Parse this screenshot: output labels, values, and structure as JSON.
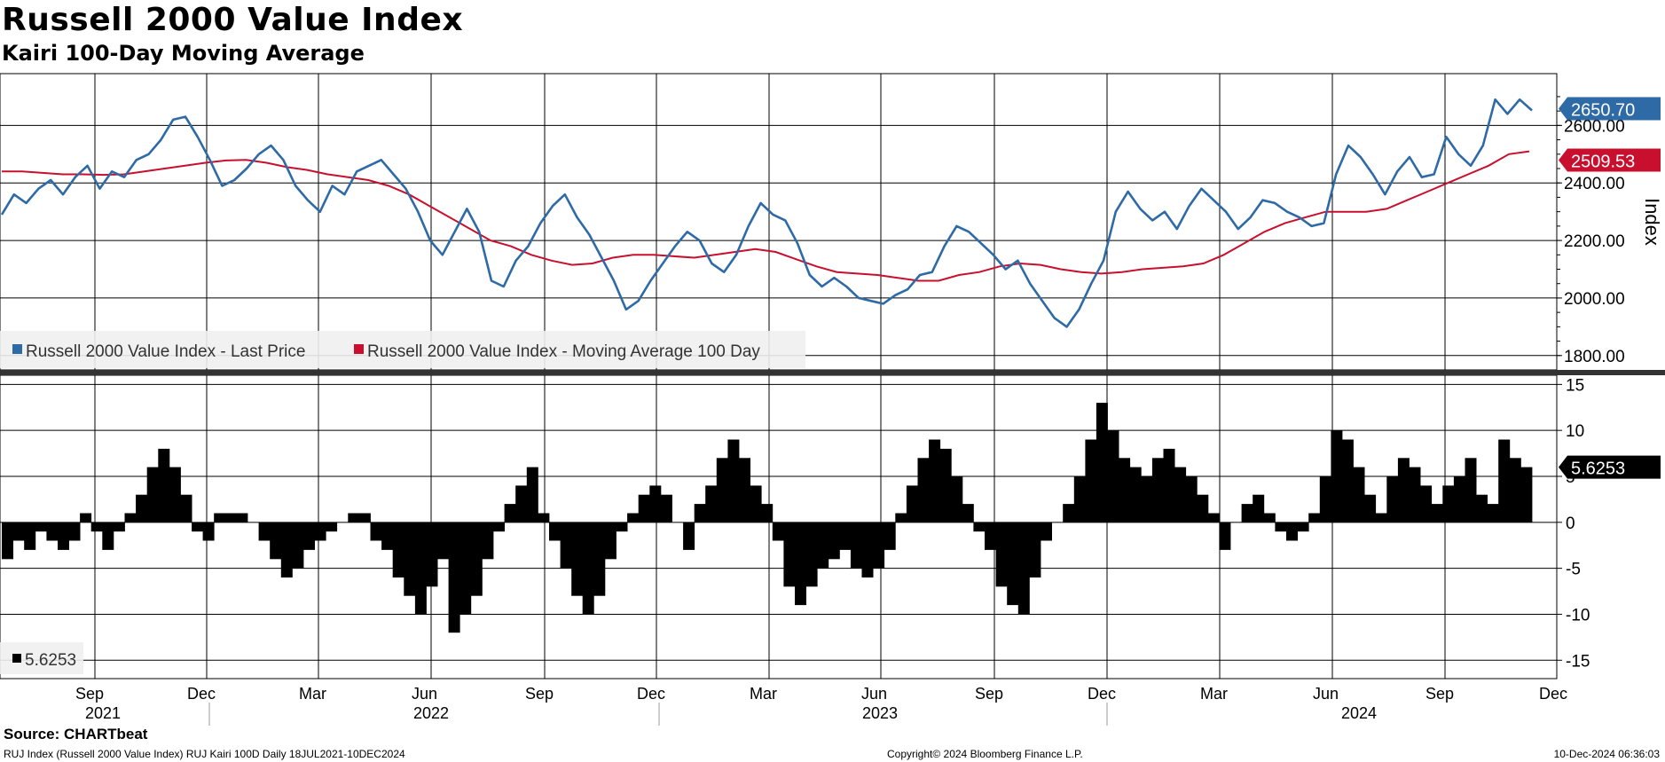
{
  "title": "Russell 2000 Value Index",
  "subtitle": "Kairi 100-Day Moving Average",
  "colors": {
    "price": "#2e6aa6",
    "ma": "#c8102e",
    "kairi": "#000000",
    "grid": "#000000"
  },
  "chart_data": {
    "type": "line",
    "period": "18JUL2021-10DEC2024",
    "months": [
      "Sep",
      "Dec",
      "Mar",
      "Jun",
      "Sep",
      "Dec",
      "Mar",
      "Jun",
      "Sep",
      "Dec",
      "Mar",
      "Jun",
      "Sep",
      "Dec"
    ],
    "years": [
      "2021",
      "2022",
      "2023",
      "2024"
    ],
    "upper": {
      "ylabel": "Index",
      "ylim": [
        1750,
        2780
      ],
      "ticks": [
        "1800.00",
        "2000.00",
        "2200.00",
        "2400.00",
        "2600.00"
      ],
      "series": [
        {
          "name": "Russell 2000 Value Index - Last Price",
          "last_label": "2650.70",
          "values": [
            2290,
            2360,
            2330,
            2380,
            2410,
            2360,
            2420,
            2460,
            2380,
            2440,
            2420,
            2480,
            2500,
            2550,
            2620,
            2630,
            2560,
            2480,
            2390,
            2410,
            2450,
            2500,
            2530,
            2480,
            2390,
            2340,
            2300,
            2390,
            2360,
            2440,
            2460,
            2480,
            2430,
            2380,
            2300,
            2200,
            2150,
            2230,
            2310,
            2230,
            2060,
            2040,
            2130,
            2180,
            2260,
            2320,
            2360,
            2280,
            2220,
            2140,
            2060,
            1960,
            1990,
            2060,
            2120,
            2180,
            2230,
            2200,
            2120,
            2090,
            2150,
            2250,
            2330,
            2290,
            2270,
            2190,
            2080,
            2040,
            2070,
            2040,
            2000,
            1990,
            1980,
            2010,
            2030,
            2080,
            2090,
            2180,
            2250,
            2230,
            2190,
            2150,
            2100,
            2130,
            2050,
            1990,
            1930,
            1900,
            1960,
            2050,
            2130,
            2300,
            2370,
            2310,
            2270,
            2300,
            2240,
            2320,
            2380,
            2340,
            2300,
            2240,
            2280,
            2340,
            2330,
            2300,
            2280,
            2250,
            2260,
            2430,
            2530,
            2490,
            2430,
            2360,
            2440,
            2490,
            2420,
            2430,
            2560,
            2500,
            2460,
            2530,
            2690,
            2640,
            2690,
            2652
          ]
        },
        {
          "name": "Russell 2000 Value Index - Moving Average 100 Day",
          "last_label": "2509.53",
          "values": [
            2440,
            2440,
            2435,
            2430,
            2430,
            2428,
            2430,
            2440,
            2450,
            2460,
            2470,
            2478,
            2480,
            2470,
            2455,
            2445,
            2430,
            2420,
            2410,
            2390,
            2360,
            2320,
            2280,
            2240,
            2200,
            2180,
            2150,
            2130,
            2115,
            2120,
            2140,
            2150,
            2150,
            2145,
            2140,
            2150,
            2160,
            2170,
            2160,
            2135,
            2110,
            2090,
            2085,
            2080,
            2070,
            2060,
            2060,
            2080,
            2090,
            2110,
            2120,
            2115,
            2100,
            2090,
            2085,
            2090,
            2100,
            2105,
            2110,
            2120,
            2150,
            2190,
            2230,
            2260,
            2280,
            2300,
            2300,
            2300,
            2310,
            2340,
            2370,
            2400,
            2430,
            2460,
            2500,
            2510
          ]
        }
      ]
    },
    "lower": {
      "name": "Kairi",
      "ylim": [
        -17,
        16
      ],
      "ticks": [
        "-15",
        "-10",
        "-5",
        "0",
        "5",
        "10",
        "15"
      ],
      "legend": "5.6253",
      "last_label": "5.6253",
      "values": [
        -4,
        -2,
        -3,
        -1,
        -2,
        -3,
        -2,
        1,
        -1,
        -3,
        -1,
        1,
        3,
        6,
        8,
        6,
        3,
        -1,
        -2,
        1,
        1,
        1,
        0,
        -2,
        -4,
        -6,
        -5,
        -3,
        -2,
        -1,
        0,
        1,
        1,
        -2,
        -3,
        -6,
        -8,
        -10,
        -7,
        -4,
        -12,
        -10,
        -8,
        -4,
        -1,
        2,
        4,
        6,
        1,
        -2,
        -5,
        -8,
        -10,
        -8,
        -4,
        -1,
        1,
        3,
        4,
        3,
        0,
        -3,
        2,
        4,
        7,
        9,
        7,
        4,
        2,
        -2,
        -7,
        -9,
        -7,
        -5,
        -4,
        -3,
        -5,
        -6,
        -5,
        -3,
        1,
        4,
        7,
        9,
        8,
        5,
        2,
        -1,
        -3,
        -7,
        -9,
        -10,
        -6,
        -2,
        0,
        2,
        5,
        9,
        13,
        10,
        7,
        6,
        5,
        7,
        8,
        6,
        5,
        3,
        1,
        -3,
        0,
        2,
        3,
        1,
        -1,
        -2,
        -1,
        1,
        5,
        10,
        9,
        6,
        3,
        1,
        5,
        7,
        6,
        4,
        2,
        4,
        5,
        7,
        3,
        2,
        9,
        7,
        6
      ]
    }
  },
  "legend": {
    "price_label": "Russell 2000 Value Index - Last Price",
    "ma_label": "Russell 2000 Value Index - Moving Average 100 Day"
  },
  "footer": {
    "source": "Source: CHARTbeat",
    "left": "RUJ Index (Russell 2000 Value Index) RUJ Kairi 100D  Daily 18JUL2021-10DEC2024",
    "center": "Copyright© 2024 Bloomberg Finance L.P.",
    "right": "10-Dec-2024 06:36:03"
  }
}
